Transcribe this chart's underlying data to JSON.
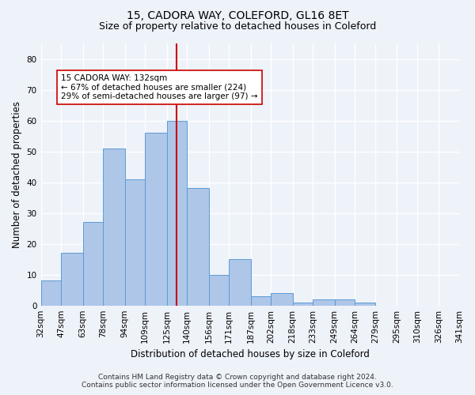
{
  "title_line1": "15, CADORA WAY, COLEFORD, GL16 8ET",
  "title_line2": "Size of property relative to detached houses in Coleford",
  "xlabel": "Distribution of detached houses by size in Coleford",
  "ylabel": "Number of detached properties",
  "bin_labels": [
    "32sqm",
    "47sqm",
    "63sqm",
    "78sqm",
    "94sqm",
    "109sqm",
    "125sqm",
    "140sqm",
    "156sqm",
    "171sqm",
    "187sqm",
    "202sqm",
    "218sqm",
    "233sqm",
    "249sqm",
    "264sqm",
    "279sqm",
    "295sqm",
    "310sqm",
    "326sqm",
    "341sqm"
  ],
  "bin_edges": [
    32,
    47,
    63,
    78,
    94,
    109,
    125,
    140,
    156,
    171,
    187,
    202,
    218,
    233,
    249,
    264,
    279,
    295,
    310,
    326,
    341
  ],
  "counts": [
    8,
    17,
    27,
    51,
    41,
    56,
    60,
    38,
    10,
    15,
    3,
    4,
    1,
    2,
    2,
    1,
    0,
    0,
    0,
    0
  ],
  "bar_color": "#aec6e8",
  "bar_edge_color": "#5b9bd5",
  "vline_x": 132,
  "vline_color": "#cc0000",
  "annotation_text": "15 CADORA WAY: 132sqm\n← 67% of detached houses are smaller (224)\n29% of semi-detached houses are larger (97) →",
  "annotation_box_color": "#ffffff",
  "annotation_box_edge": "#cc0000",
  "ylim": [
    0,
    85
  ],
  "yticks": [
    0,
    10,
    20,
    30,
    40,
    50,
    60,
    70,
    80
  ],
  "footer_line1": "Contains HM Land Registry data © Crown copyright and database right 2024.",
  "footer_line2": "Contains public sector information licensed under the Open Government Licence v3.0.",
  "bg_color": "#eef2f9",
  "grid_color": "#ffffff",
  "title_fontsize": 10,
  "subtitle_fontsize": 9,
  "label_fontsize": 8.5,
  "tick_fontsize": 7.5,
  "footer_fontsize": 6.5,
  "annot_fontsize": 7.5
}
